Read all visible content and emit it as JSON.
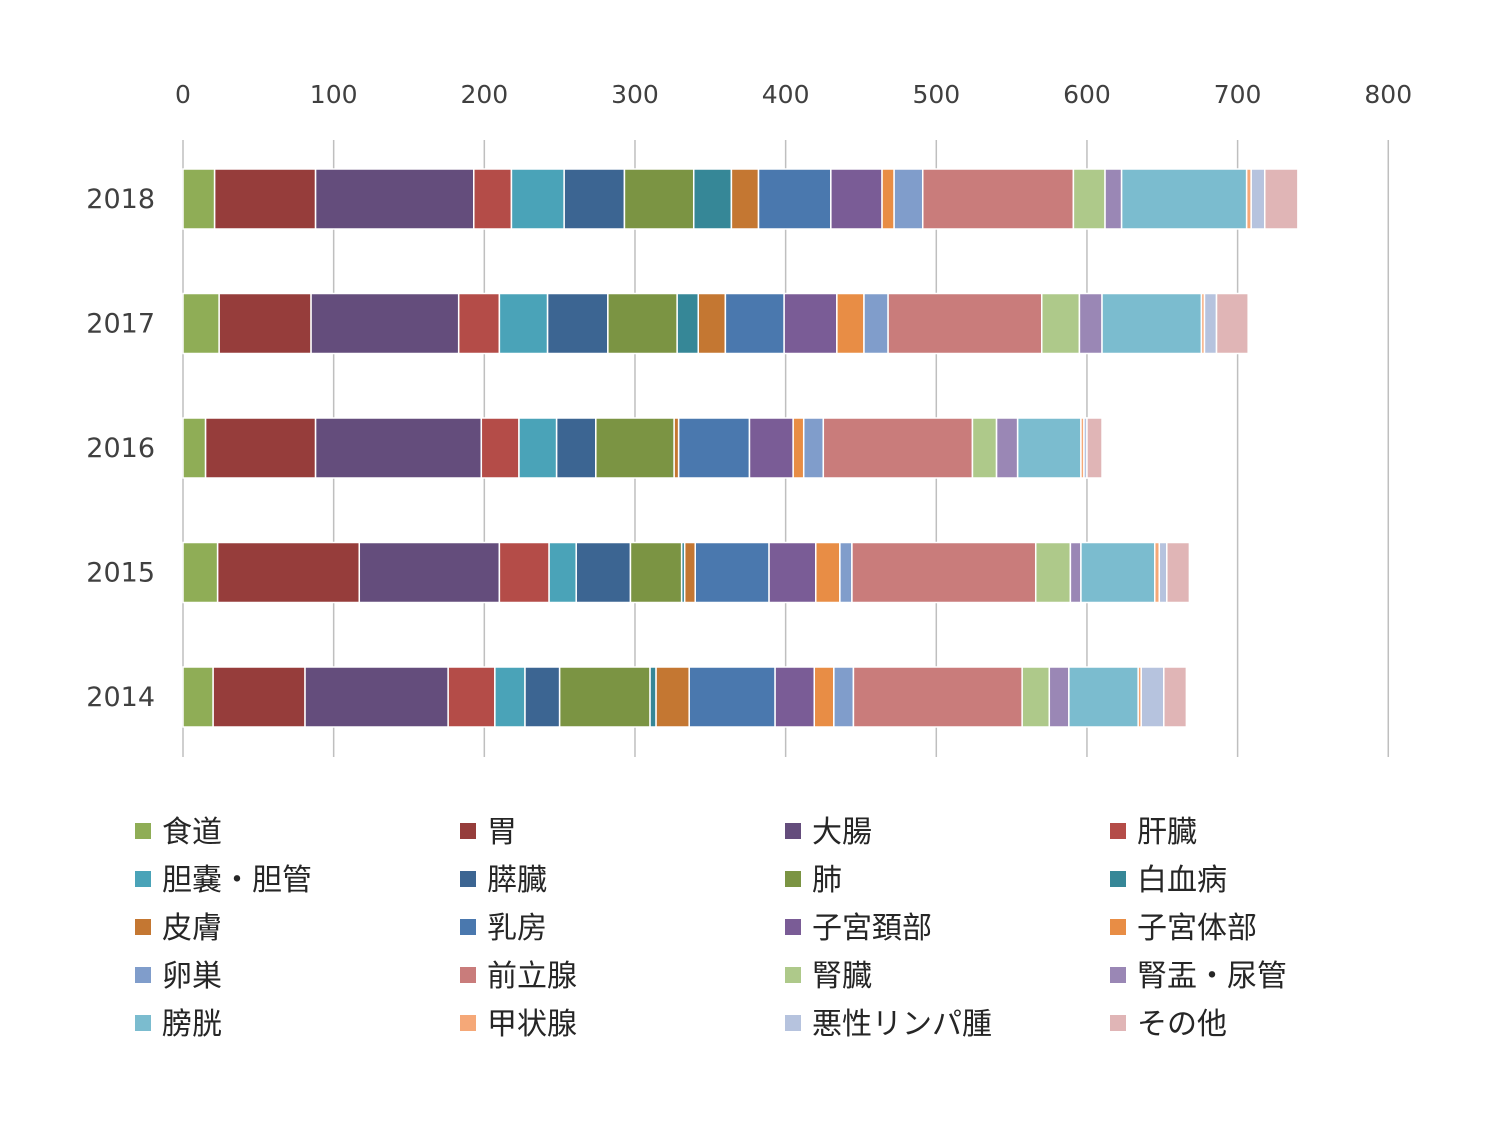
{
  "chart_data": {
    "type": "bar",
    "orientation": "horizontal",
    "stacked": true,
    "categories": [
      "2018",
      "2017",
      "2016",
      "2015",
      "2014"
    ],
    "xlim": [
      0,
      800
    ],
    "x_ticks": [
      "0",
      "100",
      "200",
      "300",
      "400",
      "500",
      "600",
      "700",
      "800"
    ],
    "x_axis_position": "top",
    "grid": true,
    "legend_position": "bottom",
    "series": [
      {
        "name": "食道",
        "color": "#8fad56",
        "values": [
          21,
          24,
          15,
          23,
          20
        ]
      },
      {
        "name": "胃",
        "color": "#963d3b",
        "values": [
          67,
          61,
          73,
          94,
          61
        ]
      },
      {
        "name": "大腸",
        "color": "#644d7c",
        "values": [
          105,
          98,
          110,
          93,
          95
        ]
      },
      {
        "name": "肝臓",
        "color": "#b44c48",
        "values": [
          25,
          27,
          25,
          33,
          31
        ]
      },
      {
        "name": "胆嚢・胆管",
        "color": "#4aa3b8",
        "values": [
          35,
          32,
          25,
          18,
          20
        ]
      },
      {
        "name": "膵臓",
        "color": "#3c6592",
        "values": [
          40,
          40,
          26,
          36,
          23
        ]
      },
      {
        "name": "肺",
        "color": "#7b9443",
        "values": [
          46,
          46,
          52,
          34,
          60
        ]
      },
      {
        "name": "白血病",
        "color": "#368797",
        "values": [
          25,
          14,
          0,
          2,
          4
        ]
      },
      {
        "name": "皮膚",
        "color": "#c47732",
        "values": [
          18,
          18,
          3,
          7,
          22
        ]
      },
      {
        "name": "乳房",
        "color": "#4a78ae",
        "values": [
          48,
          39,
          47,
          49,
          57
        ]
      },
      {
        "name": "子宮頚部",
        "color": "#7a5c96",
        "values": [
          34,
          35,
          29,
          31,
          26
        ]
      },
      {
        "name": "子宮体部",
        "color": "#e88d45",
        "values": [
          8,
          18,
          7,
          16,
          13
        ]
      },
      {
        "name": "卵巣",
        "color": "#809dcb",
        "values": [
          19,
          16,
          13,
          8,
          13
        ]
      },
      {
        "name": "前立腺",
        "color": "#c97c7b",
        "values": [
          100,
          102,
          99,
          122,
          112
        ]
      },
      {
        "name": "腎臓",
        "color": "#aec98a",
        "values": [
          21,
          25,
          16,
          23,
          18
        ]
      },
      {
        "name": "腎盂・尿管",
        "color": "#9a87b5",
        "values": [
          11,
          15,
          14,
          7,
          13
        ]
      },
      {
        "name": "膀胱",
        "color": "#7bbccf",
        "values": [
          83,
          66,
          42,
          49,
          46
        ]
      },
      {
        "name": "甲状腺",
        "color": "#f5a878",
        "values": [
          3,
          2,
          2,
          3,
          2
        ]
      },
      {
        "name": "悪性リンパ腫",
        "color": "#b6c3de",
        "values": [
          9,
          8,
          2,
          5,
          15
        ]
      },
      {
        "name": "その他",
        "color": "#e0b5b6",
        "values": [
          22,
          21,
          10,
          15,
          15
        ]
      }
    ]
  }
}
